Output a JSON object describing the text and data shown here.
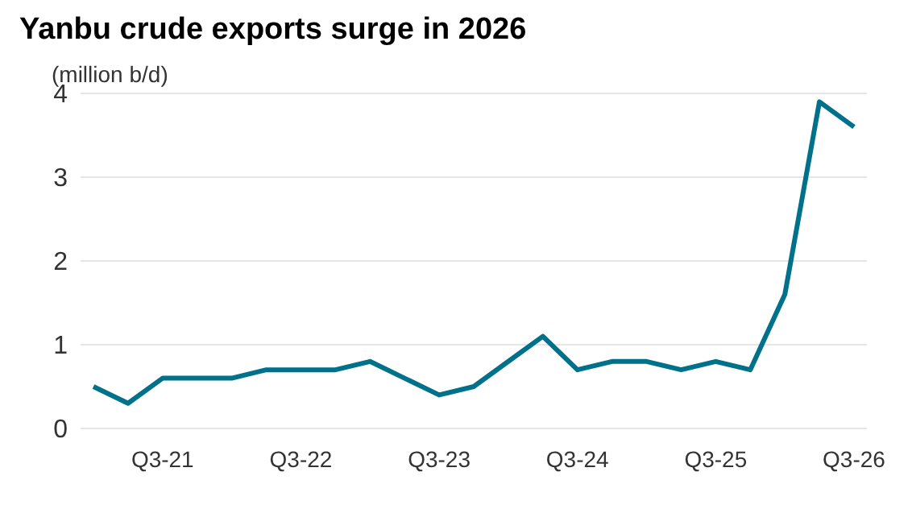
{
  "chart_data": {
    "type": "line",
    "title": "Yanbu crude exports surge in 2026",
    "ylabel": "(million b/d)",
    "categories": [
      null,
      null,
      "Q3-21",
      null,
      null,
      null,
      "Q3-22",
      null,
      null,
      null,
      "Q3-23",
      null,
      null,
      null,
      "Q3-24",
      null,
      null,
      null,
      "Q3-25",
      null,
      null,
      null,
      "Q3-26"
    ],
    "series": [
      {
        "color": "#00718a",
        "values": [
          0.5,
          0.3,
          0.6,
          0.6,
          0.6,
          0.7,
          0.7,
          0.7,
          0.8,
          0.6,
          0.4,
          0.5,
          0.8,
          1.1,
          0.7,
          0.8,
          0.8,
          0.7,
          0.8,
          0.7,
          1.6,
          3.9,
          3.6
        ]
      }
    ],
    "ylim": [
      0,
      4
    ],
    "yticks": [
      0,
      1,
      2,
      3,
      4
    ],
    "grid": "y",
    "marker": "none",
    "line_style": "solid",
    "legend": false
  }
}
